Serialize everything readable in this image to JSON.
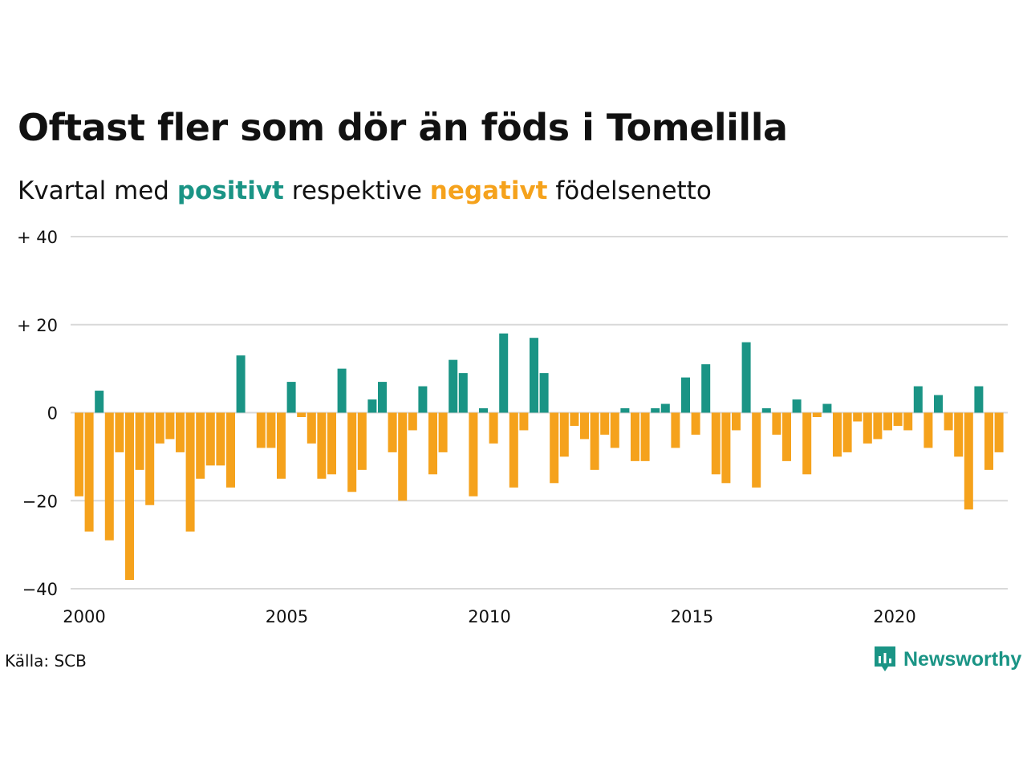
{
  "title": "Oftast fler som dör än föds i Tomelilla",
  "subtitle": {
    "prefix": "Kvartal med",
    "positive_word": "positivt",
    "middle": "respektive",
    "negative_word": "negativt",
    "suffix": "födelsenetto"
  },
  "source": "Källa: SCB",
  "brand": "Newsworthy",
  "brand_icon": "bar-chart-speech-bubble-icon",
  "colors": {
    "positive": "#1a9485",
    "negative": "#f5a21c",
    "grid": "#d9d9d9"
  },
  "chart_data": {
    "type": "bar",
    "ylim": [
      -40,
      40
    ],
    "y_ticks": [
      {
        "value": 40,
        "label": "+ 40"
      },
      {
        "value": 20,
        "label": "+ 20"
      },
      {
        "value": 0,
        "label": "0"
      },
      {
        "value": -20,
        "label": "−20"
      },
      {
        "value": -40,
        "label": "−40"
      }
    ],
    "x_ticks": [
      "2000",
      "2005",
      "2010",
      "2015",
      "2020"
    ],
    "grid": true,
    "categories": [
      "2000K1",
      "2000K2",
      "2000K3",
      "2000K4",
      "2001K1",
      "2001K2",
      "2001K3",
      "2001K4",
      "2002K1",
      "2002K2",
      "2002K3",
      "2002K4",
      "2003K1",
      "2003K2",
      "2003K3",
      "2003K4",
      "2004K1",
      "2004K2",
      "2004K3",
      "2004K4",
      "2005K1",
      "2005K2",
      "2005K3",
      "2005K4",
      "2006K1",
      "2006K2",
      "2006K3",
      "2006K4",
      "2007K1",
      "2007K2",
      "2007K3",
      "2007K4",
      "2008K1",
      "2008K2",
      "2008K3",
      "2008K4",
      "2009K1",
      "2009K2",
      "2009K3",
      "2009K4",
      "2010K1",
      "2010K2",
      "2010K3",
      "2010K4",
      "2011K1",
      "2011K2",
      "2011K3",
      "2011K4",
      "2012K1",
      "2012K2",
      "2012K3",
      "2012K4",
      "2013K1",
      "2013K2",
      "2013K3",
      "2013K4",
      "2014K1",
      "2014K2",
      "2014K3",
      "2014K4",
      "2015K1",
      "2015K2",
      "2015K3",
      "2015K4",
      "2016K1",
      "2016K2",
      "2016K3",
      "2016K4",
      "2017K1",
      "2017K2",
      "2017K3",
      "2017K4",
      "2018K1",
      "2018K2",
      "2018K3",
      "2018K4",
      "2019K1",
      "2019K2",
      "2019K3",
      "2019K4",
      "2020K1",
      "2020K2",
      "2020K3",
      "2020K4",
      "2021K1",
      "2021K2",
      "2021K3",
      "2021K4",
      "2022K1",
      "2022K2",
      "2022K3",
      "2022K4"
    ],
    "values": [
      -19,
      -27,
      5,
      -29,
      -9,
      -38,
      -13,
      -21,
      -7,
      -6,
      -9,
      -27,
      -15,
      -12,
      -12,
      -17,
      13,
      0,
      -8,
      -8,
      -15,
      7,
      -1,
      -7,
      -15,
      -14,
      10,
      -18,
      -13,
      3,
      7,
      -9,
      -20,
      -4,
      6,
      -14,
      -9,
      12,
      9,
      -19,
      1,
      -7,
      18,
      -17,
      -4,
      17,
      9,
      -16,
      -10,
      -3,
      -6,
      -13,
      -5,
      -8,
      1,
      -11,
      -11,
      1,
      2,
      -8,
      8,
      -5,
      11,
      -14,
      -16,
      -4,
      16,
      -17,
      1,
      -5,
      -11,
      3,
      -14,
      -1,
      2,
      -10,
      -9,
      -2,
      -7,
      -6,
      -4,
      -3,
      -4,
      6,
      -8,
      4,
      -4,
      -10,
      -22,
      6,
      -13,
      -9
    ]
  }
}
